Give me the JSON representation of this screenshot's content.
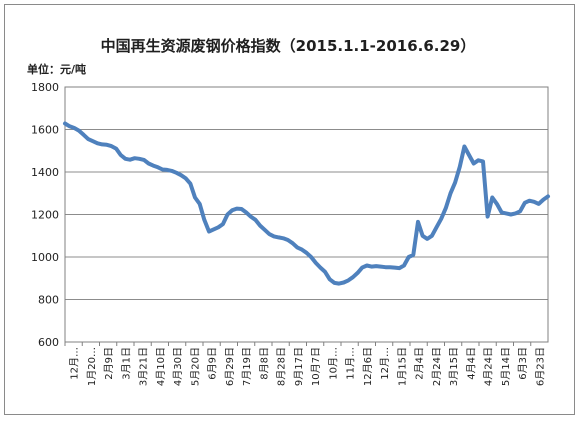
{
  "chart_data": {
    "type": "line",
    "title": "中国再生资源废钢价格指数（2015.1.1-2016.6.29）",
    "unit_label": "单位：元/吨",
    "xlabel": "",
    "ylabel": "",
    "ylim": [
      600,
      1800
    ],
    "yticks": [
      600,
      800,
      1000,
      1200,
      1400,
      1600,
      1800
    ],
    "grid": true,
    "legend": "none",
    "line_color": "#4f81bd",
    "x_tick_labels": [
      "12月…",
      "1月20…",
      "2月9日",
      "3月1日",
      "3月21日",
      "4月10日",
      "4月30日",
      "5月20日",
      "6月9日",
      "6月29日",
      "7月19日",
      "8月8日",
      "8月28日",
      "9月17日",
      "10月7日",
      "10月…",
      "11月…",
      "12月6日",
      "12月…",
      "1月15日",
      "2月4日",
      "2月24日",
      "3月15日",
      "4月4日",
      "4月24日",
      "5月14日",
      "6月3日",
      "6月23日"
    ],
    "series": [
      {
        "values": [
          1628,
          1615,
          1607,
          1595,
          1575,
          1555,
          1545,
          1535,
          1530,
          1528,
          1522,
          1510,
          1480,
          1462,
          1458,
          1465,
          1462,
          1457,
          1440,
          1430,
          1422,
          1412,
          1410,
          1405,
          1396,
          1385,
          1370,
          1345,
          1280,
          1250,
          1175,
          1120,
          1130,
          1140,
          1155,
          1200,
          1220,
          1228,
          1226,
          1210,
          1190,
          1175,
          1148,
          1128,
          1108,
          1097,
          1092,
          1088,
          1080,
          1065,
          1045,
          1035,
          1020,
          1000,
          972,
          950,
          930,
          895,
          878,
          875,
          880,
          890,
          905,
          925,
          950,
          960,
          955,
          957,
          955,
          952,
          952,
          950,
          948,
          960,
          1000,
          1010,
          1165,
          1100,
          1085,
          1100,
          1140,
          1180,
          1230,
          1300,
          1350,
          1425,
          1520,
          1480,
          1440,
          1455,
          1450,
          1190,
          1280,
          1250,
          1210,
          1205,
          1200,
          1205,
          1215,
          1255,
          1265,
          1260,
          1250,
          1270,
          1285
        ]
      }
    ]
  }
}
